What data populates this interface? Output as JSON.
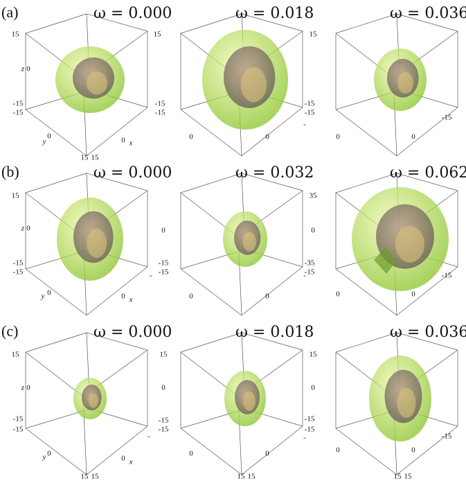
{
  "rows": [
    {
      "label": "(a)",
      "panels": [
        {
          "omega": "ω = 0.000",
          "ticks": [
            "15",
            "z",
            "0",
            "-15",
            "-15",
            "y",
            "0",
            "15",
            "15",
            "0",
            "x"
          ]
        },
        {
          "omega": "ω = 0.018",
          "ticks": [
            "15",
            "-15",
            "-15",
            "0",
            "0",
            "-"
          ]
        },
        {
          "omega": "ω = 0.036",
          "ticks": [
            "15",
            "-15",
            "-15",
            "0",
            "0",
            "-15"
          ]
        }
      ]
    },
    {
      "label": "(b)",
      "panels": [
        {
          "omega": "ω = 0.000",
          "ticks": [
            "15",
            "z",
            "0",
            "-15",
            "-15",
            "y",
            "0",
            "0",
            "x",
            "-"
          ]
        },
        {
          "omega": "ω = 0.032",
          "ticks": [
            "0",
            "-15",
            "-15",
            "0",
            "0",
            "-"
          ]
        },
        {
          "omega": "ω = 0.062",
          "ticks": [
            "35",
            "0",
            "-35",
            "-15",
            "0",
            "0",
            "-15"
          ]
        }
      ]
    },
    {
      "label": "(c)",
      "panels": [
        {
          "omega": "ω = 0.000",
          "ticks": [
            "15",
            "z",
            "0",
            "-15",
            "-15",
            "y",
            "0",
            "15",
            "15",
            "0",
            "x",
            "-"
          ]
        },
        {
          "omega": "ω = 0.018",
          "ticks": [
            "15",
            "0",
            "-15",
            "-15",
            "0",
            "0",
            "15",
            "15",
            "-"
          ]
        },
        {
          "omega": "ω = 0.036",
          "ticks": [
            "15",
            "0",
            "-15",
            "-15",
            "0",
            "0",
            "15",
            "15",
            "-15"
          ]
        }
      ]
    }
  ]
}
